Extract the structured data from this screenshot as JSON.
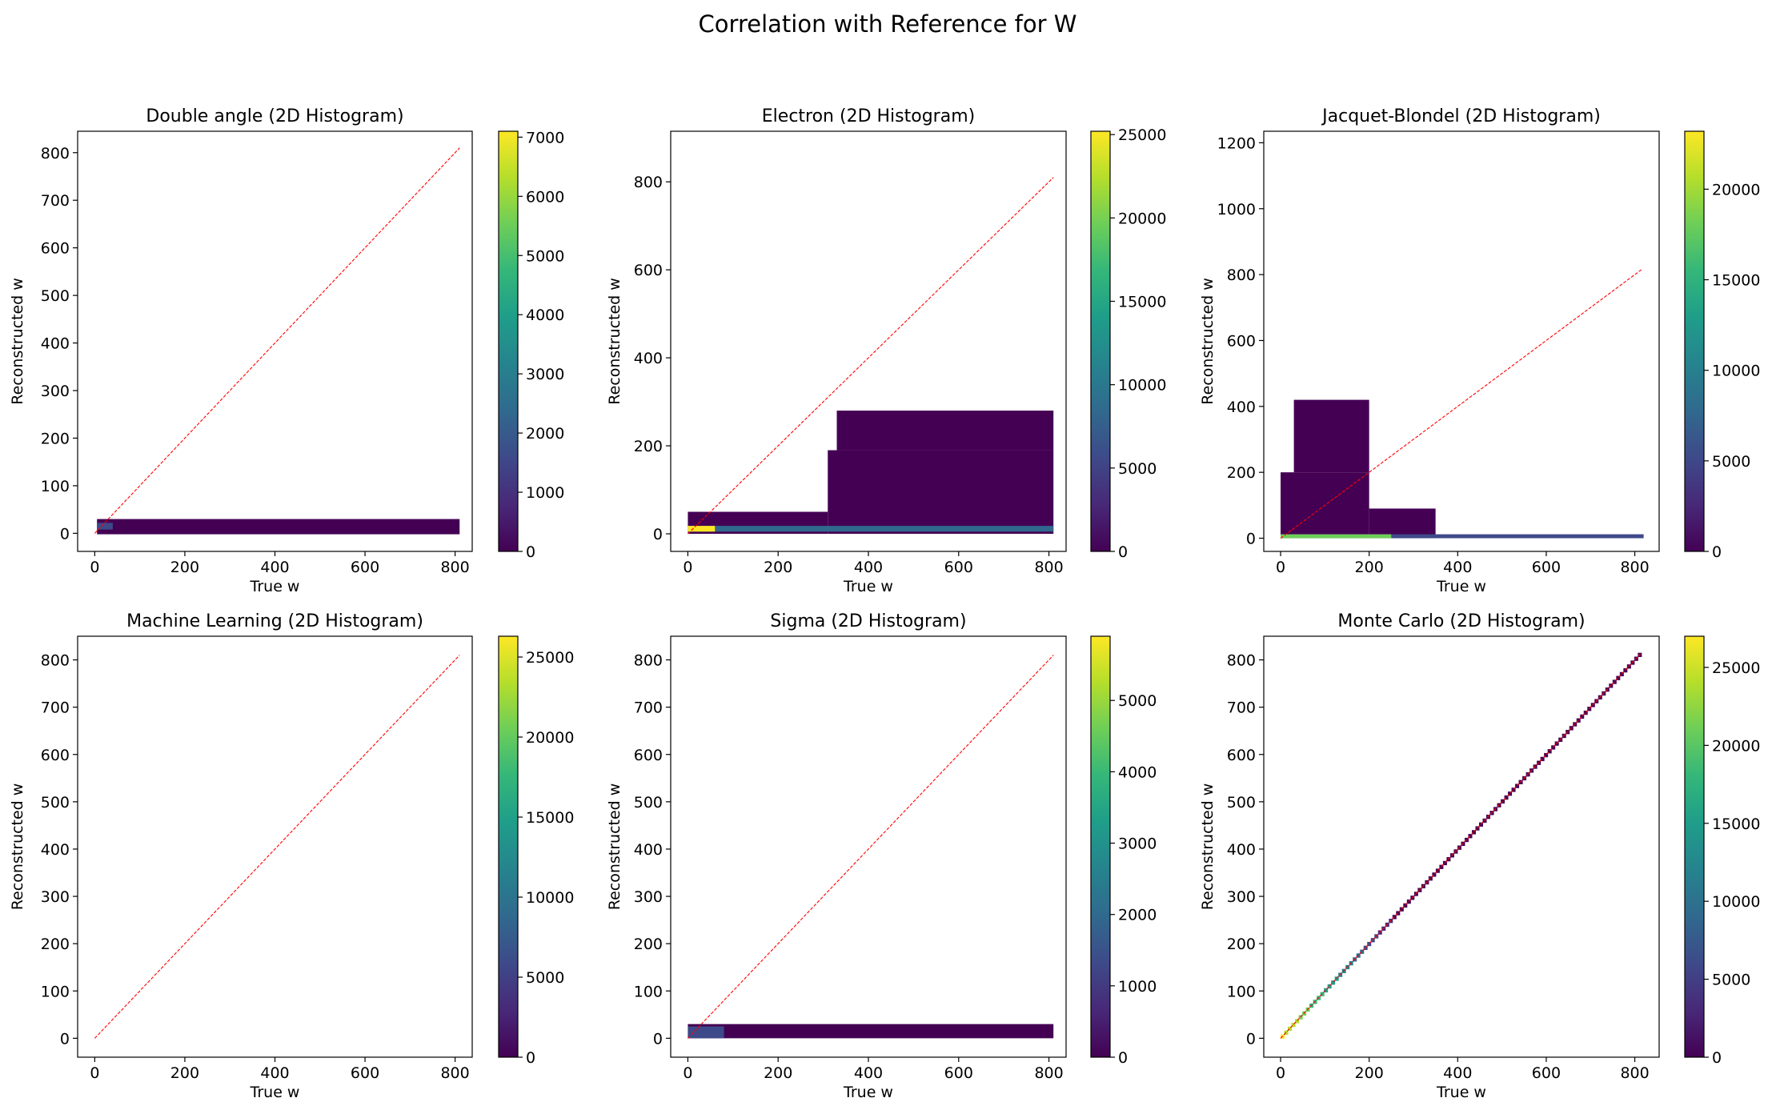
{
  "figure": {
    "title": "Correlation with Reference for W"
  },
  "colors": {
    "reference_line": "#ff0000",
    "colormap": [
      "#440154",
      "#482878",
      "#3e4989",
      "#31688e",
      "#26828e",
      "#1f9e89",
      "#35b779",
      "#6ece58",
      "#b5de2b",
      "#fde725"
    ]
  },
  "chart_data": [
    {
      "type": "heatmap",
      "title": "Double angle (2D Histogram)",
      "xlabel": "True w",
      "ylabel": "Reconstructed w",
      "xlim": [
        -38,
        838
      ],
      "ylim": [
        -38,
        845
      ],
      "xticks": [
        0,
        200,
        400,
        600,
        800
      ],
      "yticks": [
        0,
        100,
        200,
        300,
        400,
        500,
        600,
        700,
        800
      ],
      "colorbar": {
        "min": 0,
        "max": 7100,
        "ticks": [
          0,
          1000,
          2000,
          3000,
          4000,
          5000,
          6000,
          7000
        ]
      },
      "reference_line": {
        "x": [
          0,
          810
        ],
        "y": [
          0,
          810
        ]
      },
      "regions": [
        {
          "x": [
            5,
            810
          ],
          "y": [
            -2,
            30
          ],
          "count": 150
        },
        {
          "x": [
            5,
            40
          ],
          "y": [
            8,
            22
          ],
          "count": 1500
        }
      ]
    },
    {
      "type": "heatmap",
      "title": "Electron (2D Histogram)",
      "xlabel": "True w",
      "ylabel": "Reconstructed w",
      "xlim": [
        -38,
        838
      ],
      "ylim": [
        -40,
        915
      ],
      "xticks": [
        0,
        200,
        400,
        600,
        800
      ],
      "yticks": [
        0,
        200,
        400,
        600,
        800
      ],
      "colorbar": {
        "min": 0,
        "max": 25200,
        "ticks": [
          0,
          5000,
          10000,
          15000,
          20000,
          25000
        ]
      },
      "reference_line": {
        "x": [
          0,
          810
        ],
        "y": [
          0,
          810
        ]
      },
      "regions": [
        {
          "x": [
            0,
            310
          ],
          "y": [
            0,
            50
          ],
          "count": 80
        },
        {
          "x": [
            310,
            810
          ],
          "y": [
            0,
            190
          ],
          "count": 80
        },
        {
          "x": [
            330,
            810
          ],
          "y": [
            190,
            280
          ],
          "count": 30
        },
        {
          "x": [
            0,
            810
          ],
          "y": [
            5,
            18
          ],
          "count": 9000
        },
        {
          "x": [
            0,
            60
          ],
          "y": [
            5,
            18
          ],
          "count": 24000
        }
      ]
    },
    {
      "type": "heatmap",
      "title": "Jacquet-Blondel (2D Histogram)",
      "xlabel": "True w",
      "ylabel": "Reconstructed w",
      "xlim": [
        -38,
        855
      ],
      "ylim": [
        -40,
        1235
      ],
      "xticks": [
        0,
        200,
        400,
        600,
        800
      ],
      "yticks": [
        0,
        200,
        400,
        600,
        800,
        1000,
        1200
      ],
      "colorbar": {
        "min": 0,
        "max": 23200,
        "ticks": [
          0,
          5000,
          10000,
          15000,
          20000
        ]
      },
      "reference_line": {
        "x": [
          0,
          815
        ],
        "y": [
          0,
          815
        ]
      },
      "regions": [
        {
          "x": [
            0,
            200
          ],
          "y": [
            0,
            200
          ],
          "count": 80
        },
        {
          "x": [
            200,
            350
          ],
          "y": [
            0,
            90
          ],
          "count": 60
        },
        {
          "x": [
            30,
            200
          ],
          "y": [
            200,
            420
          ],
          "count": 20
        },
        {
          "x": [
            0,
            820
          ],
          "y": [
            0,
            12
          ],
          "count": 4000
        },
        {
          "x": [
            0,
            250
          ],
          "y": [
            0,
            12
          ],
          "count": 18000
        }
      ]
    },
    {
      "type": "heatmap",
      "title": "Machine Learning (2D Histogram)",
      "xlabel": "True w",
      "ylabel": "Reconstructed w",
      "xlim": [
        -38,
        838
      ],
      "ylim": [
        -40,
        850
      ],
      "xticks": [
        0,
        200,
        400,
        600,
        800
      ],
      "yticks": [
        0,
        100,
        200,
        300,
        400,
        500,
        600,
        700,
        800
      ],
      "colorbar": {
        "min": 0,
        "max": 26300,
        "ticks": [
          0,
          5000,
          10000,
          15000,
          20000,
          25000
        ]
      },
      "reference_line": {
        "x": [
          0,
          810
        ],
        "y": [
          0,
          810
        ]
      },
      "regions": []
    },
    {
      "type": "heatmap",
      "title": "Sigma (2D Histogram)",
      "xlabel": "True w",
      "ylabel": "Reconstructed w",
      "xlim": [
        -38,
        838
      ],
      "ylim": [
        -40,
        850
      ],
      "xticks": [
        0,
        200,
        400,
        600,
        800
      ],
      "yticks": [
        0,
        100,
        200,
        300,
        400,
        500,
        600,
        700,
        800
      ],
      "colorbar": {
        "min": 0,
        "max": 5900,
        "ticks": [
          0,
          1000,
          2000,
          3000,
          4000,
          5000
        ]
      },
      "reference_line": {
        "x": [
          0,
          810
        ],
        "y": [
          0,
          810
        ]
      },
      "regions": [
        {
          "x": [
            0,
            810
          ],
          "y": [
            0,
            30
          ],
          "count": 150
        },
        {
          "x": [
            0,
            80
          ],
          "y": [
            0,
            25
          ],
          "count": 1500
        }
      ]
    },
    {
      "type": "heatmap",
      "title": "Monte Carlo (2D Histogram)",
      "xlabel": "True w",
      "ylabel": "Reconstructed w",
      "xlim": [
        -38,
        855
      ],
      "ylim": [
        -40,
        850
      ],
      "xticks": [
        0,
        200,
        400,
        600,
        800
      ],
      "yticks": [
        0,
        100,
        200,
        300,
        400,
        500,
        600,
        700,
        800
      ],
      "colorbar": {
        "min": 0,
        "max": 27000,
        "ticks": [
          0,
          5000,
          10000,
          15000,
          20000,
          25000
        ]
      },
      "reference_line": {
        "x": [
          0,
          815
        ],
        "y": [
          0,
          815
        ]
      },
      "diagonal": {
        "from": 0,
        "to": 815,
        "peak_count": 26000
      }
    }
  ]
}
